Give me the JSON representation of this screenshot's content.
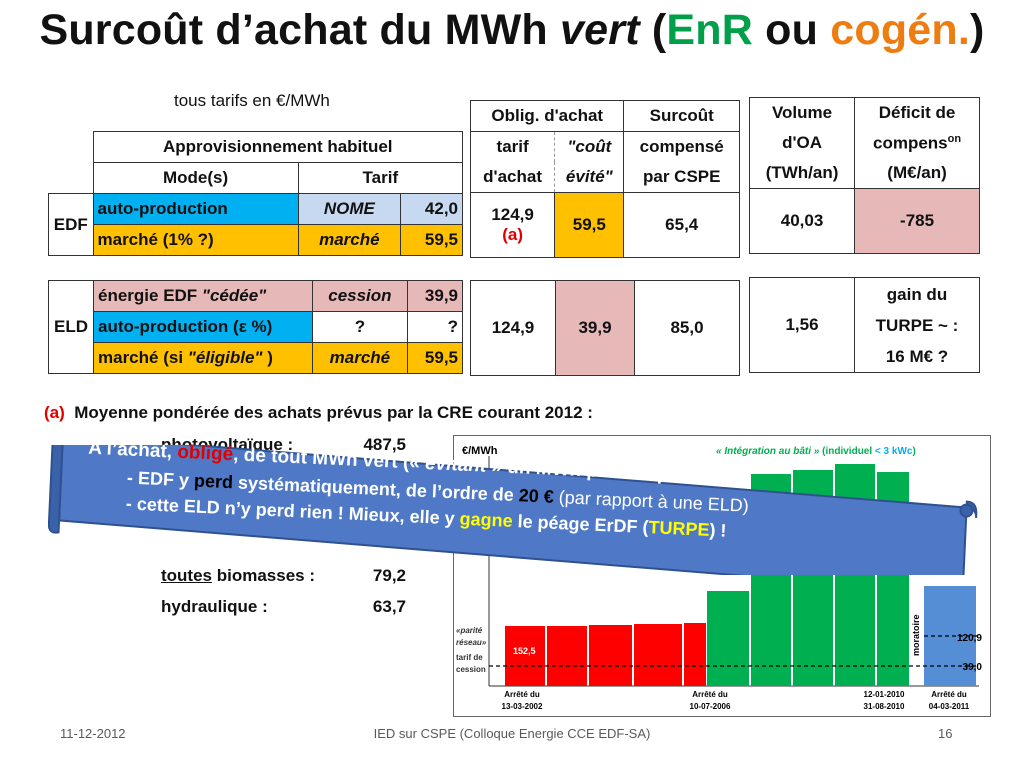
{
  "title": {
    "part1": "Surcoût d’achat du MWh ",
    "vert": "vert",
    "paren_open": " (",
    "enr": "EnR",
    "ou": " ou ",
    "cogen": "cogén.",
    "paren_close": ")"
  },
  "subtitle": "tous tarifs en €/MWh",
  "supply_table": {
    "header_group": "Approvisionnement habituel",
    "col_mode": "Mode(s)",
    "col_tarif": "Tarif",
    "edf_label": "EDF",
    "eld_label": "ELD",
    "edf_rows": [
      {
        "mode": "auto-production",
        "type": "NOME",
        "value": "42,0"
      },
      {
        "mode": "marché  (1% ?)",
        "type": "marché",
        "value": "59,5"
      }
    ],
    "eld_rows": [
      {
        "mode_prefix": "énergie EDF ",
        "mode_italic": "\"cédée\"",
        "type": "cession",
        "value": "39,9"
      },
      {
        "mode": "auto-production (ε %)",
        "type": "?",
        "value": "?"
      },
      {
        "mode_prefix": "marché (si ",
        "mode_italic": "\"éligible\"",
        "mode_suffix": " )",
        "type": "marché",
        "value": "59,5"
      }
    ]
  },
  "oa_table": {
    "col1_head1": "Oblig. d'achat",
    "col1_head2a": "tarif",
    "col1_head3a": "d'achat",
    "col1_head2b": "\"coût",
    "col1_head3b": "évité\"",
    "col2_head1": "Surcoût",
    "col2_head2": "compensé",
    "col2_head3": "par CSPE",
    "edf": {
      "tarif": "124,9",
      "note": "(a)",
      "cout": "59,5",
      "surcout": "65,4"
    },
    "eld": {
      "tarif": "124,9",
      "cout": "39,9",
      "surcout": "85,0"
    }
  },
  "vol_table": {
    "col1_head1": "Volume",
    "col1_head2": "d'OA",
    "col1_head3": "(TWh/an)",
    "col2_head1": "Déficit de",
    "col2_head2": "compens",
    "col2_sup": "on",
    "col2_head3": "(M€/an)",
    "edf": {
      "volume": "40,03",
      "deficit": "-785"
    },
    "eld": {
      "volume": "1,56",
      "gain1": "gain du",
      "gain2": "TURPE ~ :",
      "gain3": "16 M€ ?"
    }
  },
  "note_a": {
    "marker": "(a)",
    "text": "Moyenne pondérée des  achats prévus par la CRE courant 2012 :"
  },
  "averages": [
    {
      "label": "photovoltaïque :",
      "value": "487,5"
    },
    {
      "label_u": "toutes",
      "label": " biomasses :",
      "value": "79,2"
    },
    {
      "label": "hydraulique :",
      "value": "63,7"
    }
  ],
  "chart_data": {
    "type": "bar",
    "ylabel": "€/MWh",
    "legend_italic": "« Intégration au bâti »",
    "legend_rest": " (individuel ",
    "legend_blue": "< 3 kWc",
    "legend_close": ")",
    "bar_value_label": "152,5",
    "left_note": [
      "«parité",
      "réseau»",
      "tarif de",
      "cession"
    ],
    "moratoire": "moratoire",
    "line_120": "120,9",
    "line_39": "39,0",
    "dates": [
      {
        "top": "Arrêté du",
        "bottom": "13-03-2002"
      },
      {
        "top": "Arrêté du",
        "bottom": "10-07-2006"
      },
      {
        "top": "12-01-2010",
        "bottom": "31-08-2010"
      },
      {
        "top": "Arrêté du",
        "bottom": "04-03-2011"
      }
    ],
    "colors": {
      "red": "#ff0000",
      "green": "#00b050",
      "blue": "#558ed5"
    }
  },
  "banner": {
    "line1_a": "A l’achat, ",
    "line1_b": "obligé",
    "line1_c": ", de tout MWh vert (« ",
    "line1_d": "évitant",
    "line1_e": " » un MWh produit par  EDF) :",
    "line2_a": "- EDF y ",
    "line2_b": "perd",
    "line2_c": " systématiquement, de l’ordre de ",
    "line2_d": "20 €",
    "line2_e": " (par rapport à une ELD)",
    "line3_a": "- cette ELD n’y perd rien ! Mieux, elle y ",
    "line3_b": "gagne",
    "line3_c": " le péage ErDF  (",
    "line3_d": "TURPE",
    "line3_e": ") !"
  },
  "footer": {
    "date": "11-12-2012",
    "center": "IED sur CSPE (Colloque Energie CCE EDF-SA)",
    "page": "16"
  }
}
